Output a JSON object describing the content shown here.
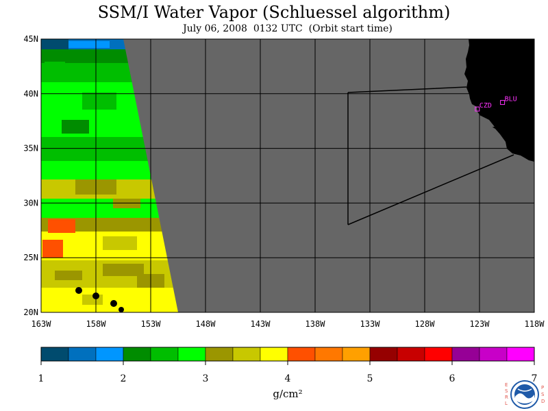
{
  "title": "SSM/I Water Vapor (Schluessel algorithm)",
  "subtitle": "July 06, 2008  0132 UTC  (Orbit start time)",
  "map": {
    "lat_range": [
      20,
      45
    ],
    "lon_range": [
      -163,
      -118
    ],
    "lat_ticks": [
      {
        "value": 45,
        "label": "45N"
      },
      {
        "value": 40,
        "label": "40N"
      },
      {
        "value": 35,
        "label": "35N"
      },
      {
        "value": 30,
        "label": "30N"
      },
      {
        "value": 25,
        "label": "25N"
      },
      {
        "value": 20,
        "label": "20N"
      }
    ],
    "lon_ticks": [
      {
        "value": -163,
        "label": "163W"
      },
      {
        "value": -158,
        "label": "158W"
      },
      {
        "value": -153,
        "label": "153W"
      },
      {
        "value": -148,
        "label": "148W"
      },
      {
        "value": -143,
        "label": "143W"
      },
      {
        "value": -138,
        "label": "138W"
      },
      {
        "value": -133,
        "label": "133W"
      },
      {
        "value": -128,
        "label": "128W"
      },
      {
        "value": -123,
        "label": "123W"
      },
      {
        "value": -118,
        "label": "118W"
      }
    ],
    "stations": [
      {
        "name": "CZD",
        "lat": 38.6,
        "lon": -123.2
      },
      {
        "name": "BLU",
        "lat": 39.2,
        "lon": -120.9
      }
    ],
    "colors": {
      "no_data": "#666666",
      "land": "#000000",
      "station": "#ff33ff",
      "grid": "#000000"
    }
  },
  "colorbar": {
    "unit": "g/cm²",
    "range": [
      1,
      7
    ],
    "labels": [
      "1",
      "2",
      "3",
      "4",
      "5",
      "6",
      "7"
    ],
    "colors": [
      "#004b6e",
      "#0070be",
      "#0096ff",
      "#008c00",
      "#00be00",
      "#00ff00",
      "#9b9600",
      "#c8c800",
      "#ffff00",
      "#ff5000",
      "#ff7800",
      "#ffa000",
      "#960000",
      "#c80000",
      "#ff0000",
      "#960096",
      "#c800c8",
      "#ff00ff"
    ]
  },
  "logo": {
    "left_text": "ESRL",
    "right_text": "PSD",
    "center_text": "NOAA"
  }
}
